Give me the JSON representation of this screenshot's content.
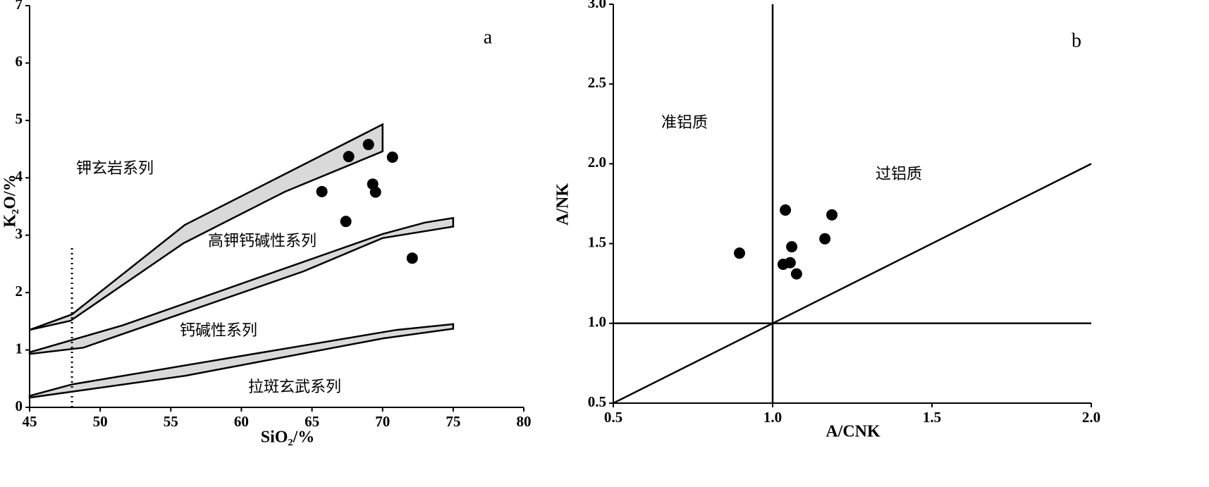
{
  "chart_data": [
    {
      "type": "scatter",
      "panel_label": "a",
      "xlabel": "SiO₂/%",
      "ylabel": "K₂O/%",
      "xlim": [
        45,
        80
      ],
      "ylim": [
        0,
        7
      ],
      "xticks": [
        45,
        50,
        55,
        60,
        65,
        70,
        75,
        80
      ],
      "yticks": [
        0,
        1,
        2,
        3,
        4,
        5,
        6,
        7
      ],
      "color": "#000000",
      "region_color": "#d9d9d9",
      "x": [
        65.7,
        67.6,
        69.0,
        70.7,
        69.3,
        69.5,
        67.4,
        72.1
      ],
      "values": [
        3.76,
        4.37,
        4.58,
        4.36,
        3.89,
        3.75,
        3.24,
        2.6
      ],
      "regions": [
        {
          "x": [
            45,
            48,
            56,
            70,
            70,
            63.1,
            55.9,
            47.9,
            45
          ],
          "y": [
            1.35,
            1.62,
            3.18,
            4.93,
            4.46,
            3.76,
            2.86,
            1.51,
            1.35
          ]
        },
        {
          "x": [
            45,
            51.6,
            70,
            73,
            75,
            75,
            70,
            64.4,
            48.8,
            45
          ],
          "y": [
            0.96,
            1.43,
            3.02,
            3.22,
            3.3,
            3.15,
            2.95,
            2.37,
            1.04,
            0.93
          ]
        },
        {
          "x": [
            45,
            48,
            71,
            75,
            75,
            70,
            56,
            45
          ],
          "y": [
            0.2,
            0.4,
            1.35,
            1.45,
            1.37,
            1.2,
            0.55,
            0.17
          ]
        }
      ],
      "lines": [
        {
          "x": [
            48,
            48
          ],
          "y": [
            0,
            2.8
          ],
          "style": "dotted"
        }
      ],
      "annotations": [
        "钾玄岩系列",
        "高钾钙碱性系列",
        "钙碱性系列",
        "拉斑玄武系列"
      ]
    },
    {
      "type": "scatter",
      "panel_label": "b",
      "xlabel": "A/CNK",
      "ylabel": "A/NK",
      "xlim": [
        0.5,
        2.0
      ],
      "ylim": [
        0.5,
        3.0
      ],
      "xticks": [
        0.5,
        {
          "value": 1,
          "label": "1.0"
        },
        1.5,
        {
          "value": 2,
          "label": "2.0"
        }
      ],
      "yticks": [
        0.5,
        {
          "value": 1,
          "label": "1.0"
        },
        1.5,
        {
          "value": 2,
          "label": "2.0"
        },
        2.5,
        {
          "value": 3,
          "label": "3.0"
        }
      ],
      "color": "#000000",
      "x": [
        0.896,
        1.04,
        1.186,
        1.164,
        1.06,
        1.033,
        1.055,
        1.075
      ],
      "values": [
        1.44,
        1.71,
        1.68,
        1.53,
        1.48,
        1.37,
        1.38,
        1.31
      ],
      "lines": [
        {
          "x": [
            1,
            1
          ],
          "y": [
            0.5,
            3.0
          ],
          "style": "solid"
        },
        {
          "x": [
            0.5,
            2.0
          ],
          "y": [
            1,
            1
          ],
          "style": "solid"
        },
        {
          "x": [
            0.5,
            2.0
          ],
          "y": [
            0.5,
            2.0
          ],
          "style": "solid"
        }
      ],
      "annotations": [
        "准铝质",
        "过铝质"
      ]
    }
  ]
}
